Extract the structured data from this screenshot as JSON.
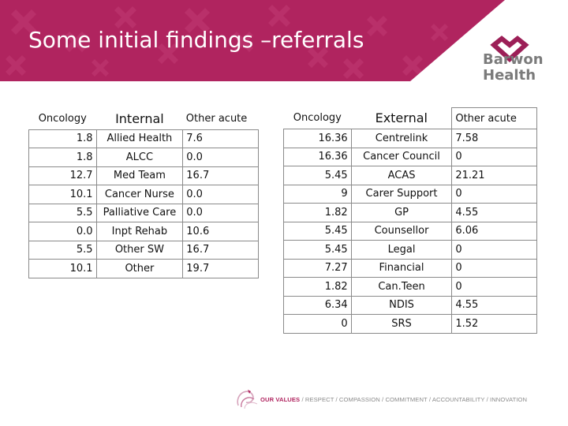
{
  "slide": {
    "title": "Some initial findings –referrals"
  },
  "logo": {
    "line1": "Barwon",
    "line2": "Health",
    "mark": "heart-chevron-logo"
  },
  "colors": {
    "header": "#b0245f",
    "header_pattern": "#c23a73",
    "logo_mark": "#9c1f57",
    "logo_text": "#7b7b7b",
    "table_border": "#8a8a8a"
  },
  "internal_table": {
    "headers": [
      "Oncology",
      "Internal",
      "Other acute"
    ],
    "rows": [
      [
        "1.8",
        "Allied Health",
        "7.6"
      ],
      [
        "1.8",
        "ALCC",
        "0.0"
      ],
      [
        "12.7",
        "Med Team",
        "16.7"
      ],
      [
        "10.1",
        "Cancer Nurse",
        "0.0"
      ],
      [
        "5.5",
        "Palliative Care",
        "0.0"
      ],
      [
        "0.0",
        "Inpt Rehab",
        "10.6"
      ],
      [
        "5.5",
        "Other SW",
        "16.7"
      ],
      [
        "10.1",
        "Other",
        "19.7"
      ]
    ]
  },
  "external_table": {
    "headers": [
      "Oncology",
      "External",
      "Other acute"
    ],
    "rows": [
      [
        "16.36",
        "Centrelink",
        "7.58"
      ],
      [
        "16.36",
        "Cancer Council",
        "0"
      ],
      [
        "5.45",
        "ACAS",
        "21.21"
      ],
      [
        "9",
        "Carer Support",
        "0"
      ],
      [
        "1.82",
        "GP",
        "4.55"
      ],
      [
        "5.45",
        "Counsellor",
        "6.06"
      ],
      [
        "5.45",
        "Legal",
        "0"
      ],
      [
        "7.27",
        "Financial",
        "0"
      ],
      [
        "1.82",
        "Can.Teen",
        "0"
      ],
      [
        "6.34",
        "NDIS",
        "4.55"
      ],
      [
        "0",
        "SRS",
        "1.52"
      ]
    ]
  },
  "footer": {
    "values_label": "OUR VALUES",
    "values_list": " / RESPECT / COMPASSION / COMMITMENT / ACCOUNTABILITY / INNOVATION"
  }
}
